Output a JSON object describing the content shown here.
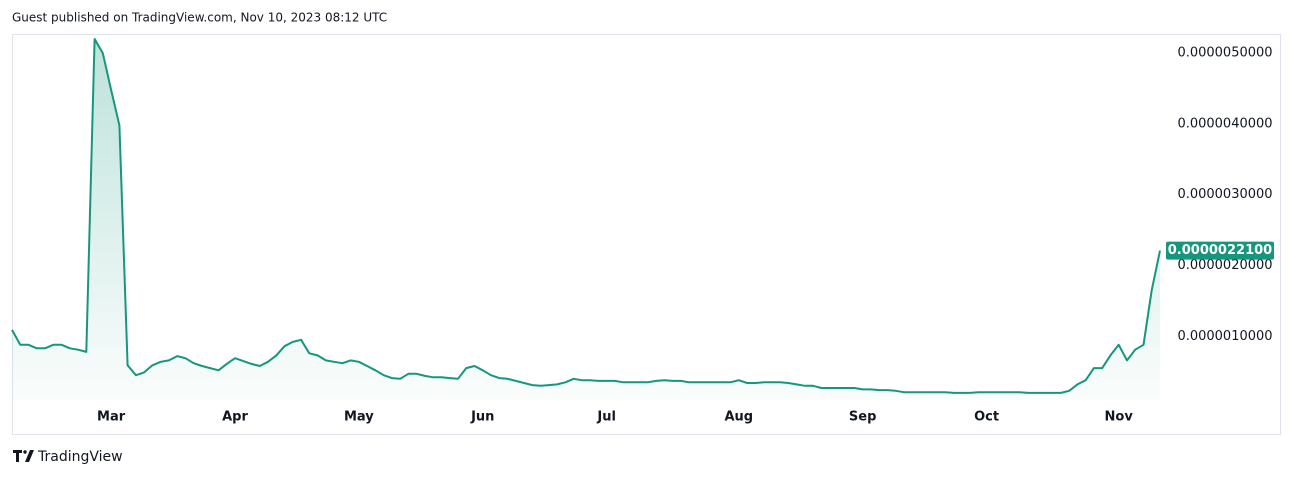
{
  "chart_data": {
    "type": "area",
    "title": "Guest published on TradingView.com, Nov 10, 2023 08:12 UTC",
    "brand": "TradingView",
    "categories": [
      null,
      null,
      null,
      null,
      null,
      null,
      null,
      null,
      null,
      null,
      null,
      null,
      "Mar",
      null,
      null,
      null,
      null,
      null,
      null,
      null,
      null,
      null,
      null,
      null,
      null,
      null,
      null,
      "Apr",
      null,
      null,
      null,
      null,
      null,
      null,
      null,
      null,
      null,
      null,
      null,
      null,
      null,
      null,
      "May",
      null,
      null,
      null,
      null,
      null,
      null,
      null,
      null,
      null,
      null,
      null,
      null,
      null,
      null,
      "Jun",
      null,
      null,
      null,
      null,
      null,
      null,
      null,
      null,
      null,
      null,
      null,
      null,
      null,
      null,
      "Jul",
      null,
      null,
      null,
      null,
      null,
      null,
      null,
      null,
      null,
      null,
      null,
      null,
      null,
      null,
      null,
      "Aug",
      null,
      null,
      null,
      null,
      null,
      null,
      null,
      null,
      null,
      null,
      null,
      null,
      null,
      null,
      "Sep",
      null,
      null,
      null,
      null,
      null,
      null,
      null,
      null,
      null,
      null,
      null,
      null,
      null,
      null,
      "Oct",
      null,
      null,
      null,
      null,
      null,
      null,
      null,
      null,
      null,
      null,
      null,
      null,
      null,
      null,
      null,
      "Nov",
      null,
      null,
      null,
      null,
      null
    ],
    "series": [
      {
        "color": "#16977d",
        "values": [
          1.09e-06,
          8.8e-07,
          8.8e-07,
          8.3e-07,
          8.3e-07,
          8.8e-07,
          8.8e-07,
          8.3e-07,
          8.1e-07,
          7.8e-07,
          5.2e-06,
          5e-06,
          4.48e-06,
          3.98e-06,
          5.9e-07,
          4.5e-07,
          4.9e-07,
          5.9e-07,
          6.4e-07,
          6.6e-07,
          7.2e-07,
          6.9e-07,
          6.2e-07,
          5.8e-07,
          5.5e-07,
          5.2e-07,
          6.1e-07,
          6.9e-07,
          6.5e-07,
          6.1e-07,
          5.8e-07,
          6.4e-07,
          7.3e-07,
          8.6e-07,
          9.2e-07,
          9.5e-07,
          7.6e-07,
          7.3e-07,
          6.6e-07,
          6.4e-07,
          6.2e-07,
          6.6e-07,
          6.4e-07,
          5.8e-07,
          5.2e-07,
          4.5e-07,
          4.1e-07,
          4e-07,
          4.7e-07,
          4.7e-07,
          4.4e-07,
          4.2e-07,
          4.2e-07,
          4.1e-07,
          4e-07,
          5.5e-07,
          5.8e-07,
          5.2e-07,
          4.5e-07,
          4.1e-07,
          4e-07,
          3.7e-07,
          3.4e-07,
          3.1e-07,
          3e-07,
          3.1e-07,
          3.2e-07,
          3.5e-07,
          4e-07,
          3.8e-07,
          3.8e-07,
          3.7e-07,
          3.7e-07,
          3.7e-07,
          3.5e-07,
          3.5e-07,
          3.5e-07,
          3.5e-07,
          3.7e-07,
          3.8e-07,
          3.7e-07,
          3.7e-07,
          3.5e-07,
          3.5e-07,
          3.5e-07,
          3.5e-07,
          3.5e-07,
          3.5e-07,
          3.8e-07,
          3.4e-07,
          3.4e-07,
          3.5e-07,
          3.5e-07,
          3.5e-07,
          3.4e-07,
          3.2e-07,
          3e-07,
          3e-07,
          2.7e-07,
          2.7e-07,
          2.7e-07,
          2.7e-07,
          2.7e-07,
          2.5e-07,
          2.5e-07,
          2.4e-07,
          2.4e-07,
          2.3e-07,
          2.1e-07,
          2.1e-07,
          2.1e-07,
          2.1e-07,
          2.1e-07,
          2.1e-07,
          2e-07,
          2e-07,
          2e-07,
          2.1e-07,
          2.1e-07,
          2.1e-07,
          2.1e-07,
          2.1e-07,
          2.1e-07,
          2e-07,
          2e-07,
          2e-07,
          2e-07,
          2e-07,
          2.3e-07,
          3.2e-07,
          3.8e-07,
          5.5e-07,
          5.5e-07,
          7.3e-07,
          8.8e-07,
          6.6e-07,
          8.1e-07,
          8.8e-07,
          1.65e-06,
          2.21e-06
        ]
      }
    ],
    "price_label": {
      "value": 2.21e-06,
      "label": "0.0000022100"
    },
    "ylim": [
      1e-07,
      5.27e-06
    ],
    "yticks": [
      {
        "value": 1e-06,
        "label": "0.0000010000"
      },
      {
        "value": 2e-06,
        "label": "0.0000020000"
      },
      {
        "value": 3e-06,
        "label": "0.0000030000"
      },
      {
        "value": 4e-06,
        "label": "0.0000040000"
      },
      {
        "value": 5e-06,
        "label": "0.0000050000"
      }
    ],
    "grid": false
  }
}
